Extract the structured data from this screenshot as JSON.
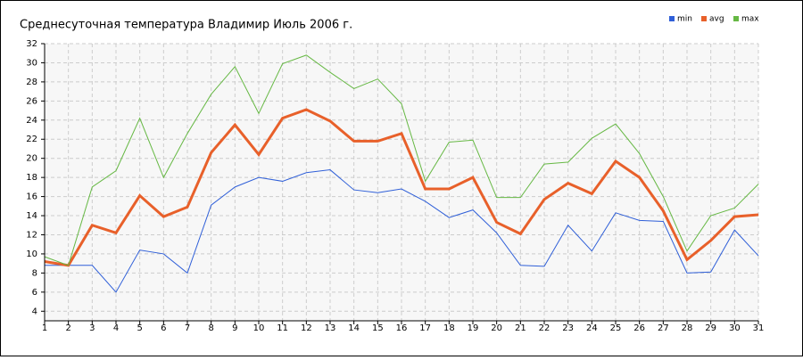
{
  "chart_data": {
    "type": "line",
    "title": "Среднесуточная температура Владимир  Июль 2006 г.",
    "x": [
      1,
      2,
      3,
      4,
      5,
      6,
      7,
      8,
      9,
      10,
      11,
      12,
      13,
      14,
      15,
      16,
      17,
      18,
      19,
      20,
      21,
      22,
      23,
      24,
      25,
      26,
      27,
      28,
      29,
      30,
      31
    ],
    "series": [
      {
        "name": "min",
        "color": "#2f5fd8",
        "values": [
          8.8,
          8.8,
          8.8,
          6.0,
          10.4,
          10.0,
          8.0,
          15.1,
          17.0,
          18.0,
          17.6,
          18.5,
          18.8,
          16.7,
          16.4,
          16.8,
          15.5,
          13.8,
          14.6,
          12.2,
          8.8,
          8.7,
          13.0,
          10.3,
          14.3,
          13.5,
          13.4,
          8.0,
          8.1,
          12.5,
          9.8
        ]
      },
      {
        "name": "avg",
        "color": "#e8602a",
        "values": [
          9.2,
          8.8,
          13.0,
          12.2,
          16.1,
          13.9,
          14.9,
          20.6,
          23.5,
          20.4,
          24.2,
          25.1,
          23.9,
          21.8,
          21.8,
          22.6,
          16.8,
          16.8,
          18.0,
          13.3,
          12.1,
          15.7,
          17.4,
          16.3,
          19.7,
          18.0,
          14.5,
          9.4,
          11.4,
          13.9,
          14.1
        ]
      },
      {
        "name": "max",
        "color": "#66b844",
        "values": [
          9.7,
          8.8,
          17.0,
          18.7,
          24.2,
          18.0,
          22.6,
          26.7,
          29.6,
          24.7,
          29.9,
          30.8,
          29.0,
          27.3,
          28.3,
          25.7,
          17.6,
          21.7,
          21.9,
          15.9,
          15.9,
          19.4,
          19.6,
          22.1,
          23.6,
          20.5,
          16.0,
          10.3,
          14.0,
          14.8,
          17.3
        ]
      }
    ],
    "xlim": [
      1,
      31
    ],
    "xticks": [
      1,
      2,
      3,
      4,
      5,
      6,
      7,
      8,
      9,
      10,
      11,
      12,
      13,
      14,
      15,
      16,
      17,
      18,
      19,
      20,
      21,
      22,
      23,
      24,
      25,
      26,
      27,
      28,
      29,
      30,
      31
    ],
    "ylim": [
      3,
      32
    ],
    "yticks": [
      4,
      6,
      8,
      10,
      12,
      14,
      16,
      18,
      20,
      22,
      24,
      26,
      28,
      30,
      32
    ],
    "grid": true,
    "legend": "top-right"
  }
}
